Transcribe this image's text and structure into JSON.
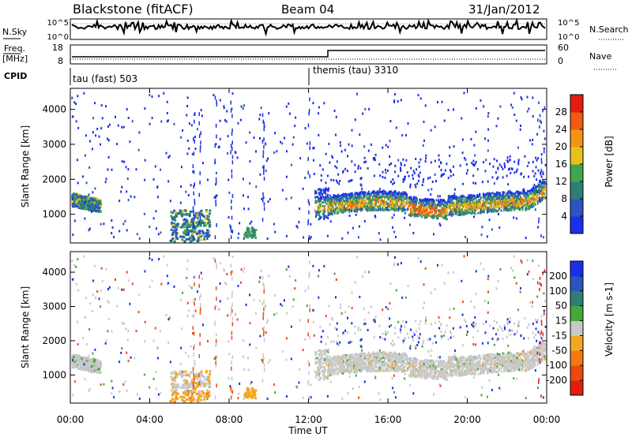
{
  "header": {
    "station": "Blackstone (fitACF)",
    "beam": "Beam 04",
    "date": "31/Jan/2012"
  },
  "panels": {
    "nsky_label": "N.Sky",
    "nsky_ticks": [
      "10^5",
      "10^0"
    ],
    "nsearch_label": "N.Search",
    "nsearch_ticks": [
      "10^5",
      "10^0"
    ],
    "freq_label_line1": "Freq.",
    "freq_label_line2": "[MHz]",
    "freq_ticks": [
      "18",
      "8"
    ],
    "nave_label": "Nave",
    "nave_ticks": [
      "60",
      "0"
    ],
    "cpid_label": "CPID",
    "cpid_segments": [
      "tau (fast) 503",
      "themis (tau) 3310"
    ]
  },
  "chart_data": [
    {
      "type": "heatmap",
      "ylabel": "Slant Range [km]",
      "yticks": [
        1000,
        2000,
        3000,
        4000
      ],
      "ylim": [
        180,
        4600
      ],
      "colorbar_label": "Power [dB]",
      "colorbar_ticks": [
        4,
        8,
        12,
        16,
        20,
        24,
        28
      ],
      "colorbar_colors": [
        "#1c2fe8",
        "#2b56c2",
        "#2f7e75",
        "#3fa84e",
        "#e8c21a",
        "#f39413",
        "#f05a12",
        "#e41c10"
      ],
      "xlabel": ""
    },
    {
      "type": "heatmap",
      "ylabel": "Slant Range [km]",
      "yticks": [
        1000,
        2000,
        3000,
        4000
      ],
      "ylim": [
        180,
        4600
      ],
      "colorbar_label": "Velocity [m s-1]",
      "colorbar_ticks": [
        200,
        100,
        50,
        15,
        -15,
        -50,
        -100,
        -200
      ],
      "colorbar_colors": [
        "#1c2fe8",
        "#2b56c2",
        "#2f7e75",
        "#45a83a",
        "#c8c8c8",
        "#f5a623",
        "#f27a12",
        "#e84a10",
        "#e41c10"
      ],
      "xlabel": "Time UT",
      "xticks": [
        "00:00",
        "04:00",
        "08:00",
        "12:00",
        "16:00",
        "20:00",
        "00:00"
      ]
    }
  ]
}
